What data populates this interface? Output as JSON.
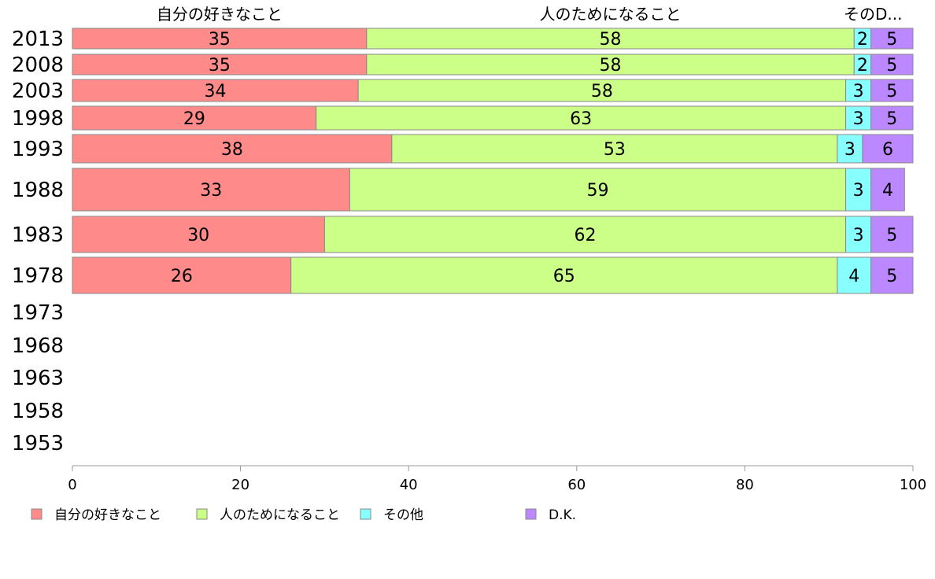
{
  "chart_data": {
    "type": "bar",
    "orientation": "horizontal",
    "stacked": true,
    "categories": [
      "2013",
      "2008",
      "2003",
      "1998",
      "1993",
      "1988",
      "1983",
      "1978",
      "1973",
      "1968",
      "1963",
      "1958",
      "1953"
    ],
    "series": [
      {
        "name": "自分の好きなこと",
        "color": "#ff8a8a",
        "values": [
          35,
          35,
          34,
          29,
          38,
          33,
          30,
          26,
          null,
          null,
          null,
          null,
          null
        ]
      },
      {
        "name": "人のためになること",
        "color": "#ccff88",
        "values": [
          58,
          58,
          58,
          63,
          53,
          59,
          62,
          65,
          null,
          null,
          null,
          null,
          null
        ]
      },
      {
        "name": "その他",
        "color": "#88ffff",
        "values": [
          2,
          2,
          3,
          3,
          3,
          3,
          3,
          4,
          null,
          null,
          null,
          null,
          null
        ]
      },
      {
        "name": "D.K.",
        "color": "#bb88ff",
        "values": [
          5,
          5,
          5,
          5,
          6,
          4,
          5,
          5,
          null,
          null,
          null,
          null,
          null
        ]
      }
    ],
    "header_labels": [
      "自分の好きなこと",
      "人のためになること",
      "そのD..."
    ],
    "xlim": [
      0,
      100
    ],
    "xticks": [
      0,
      20,
      40,
      60,
      80,
      100
    ],
    "grid": false,
    "legend_position": "bottom"
  }
}
